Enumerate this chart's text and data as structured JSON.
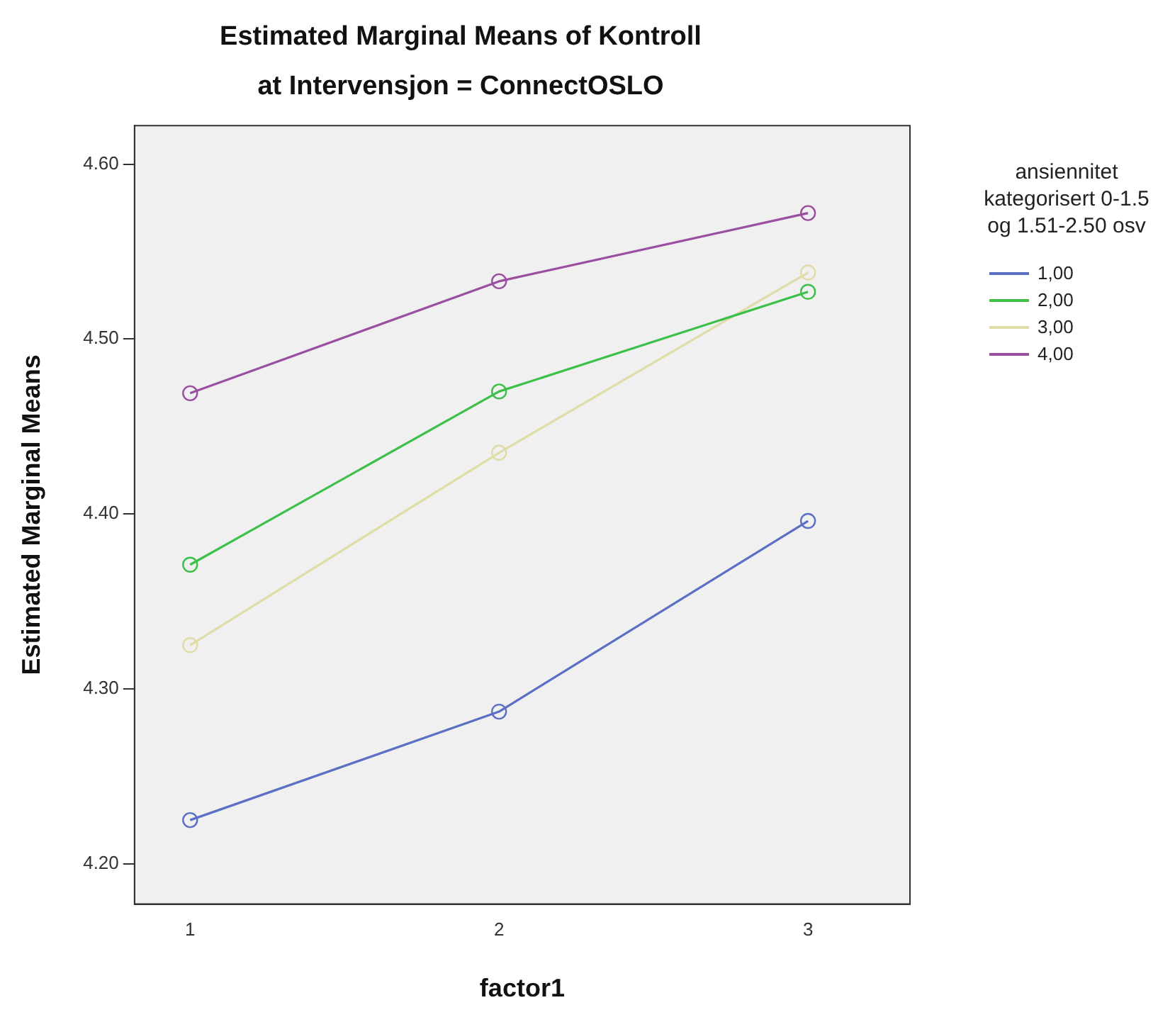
{
  "chart_data": {
    "type": "line",
    "title": "Estimated Marginal Means of Kontroll",
    "subtitle": "at Intervensjon = ConnectOSLO",
    "xlabel": "factor1",
    "ylabel": "Estimated Marginal Means",
    "legend_title": "ansiennitet kategorisert 0-1.5 og 1.51-2.50 osv",
    "x": [
      1,
      2,
      3
    ],
    "xlim": [
      0.82,
      3.33
    ],
    "xticks": [
      1,
      2,
      3
    ],
    "ylim": [
      4.177,
      4.622
    ],
    "yticks": [
      {
        "value": 4.2,
        "label": "4.20"
      },
      {
        "value": 4.3,
        "label": "4.30"
      },
      {
        "value": 4.4,
        "label": "4.40"
      },
      {
        "value": 4.5,
        "label": "4.50"
      },
      {
        "value": 4.6,
        "label": "4.60"
      }
    ],
    "grid": false,
    "legend": "right",
    "marker": "circle",
    "line_style": "solid",
    "series": [
      {
        "name": "1,00",
        "color": "#5b6fc4",
        "values": [
          4.225,
          4.287,
          4.396
        ]
      },
      {
        "name": "2,00",
        "color": "#3cc04a",
        "values": [
          4.371,
          4.47,
          4.527
        ]
      },
      {
        "name": "3,00",
        "color": "#e0dca8",
        "values": [
          4.325,
          4.435,
          4.538
        ]
      },
      {
        "name": "4,00",
        "color": "#9a4fa0",
        "values": [
          4.469,
          4.533,
          4.572
        ]
      }
    ]
  }
}
